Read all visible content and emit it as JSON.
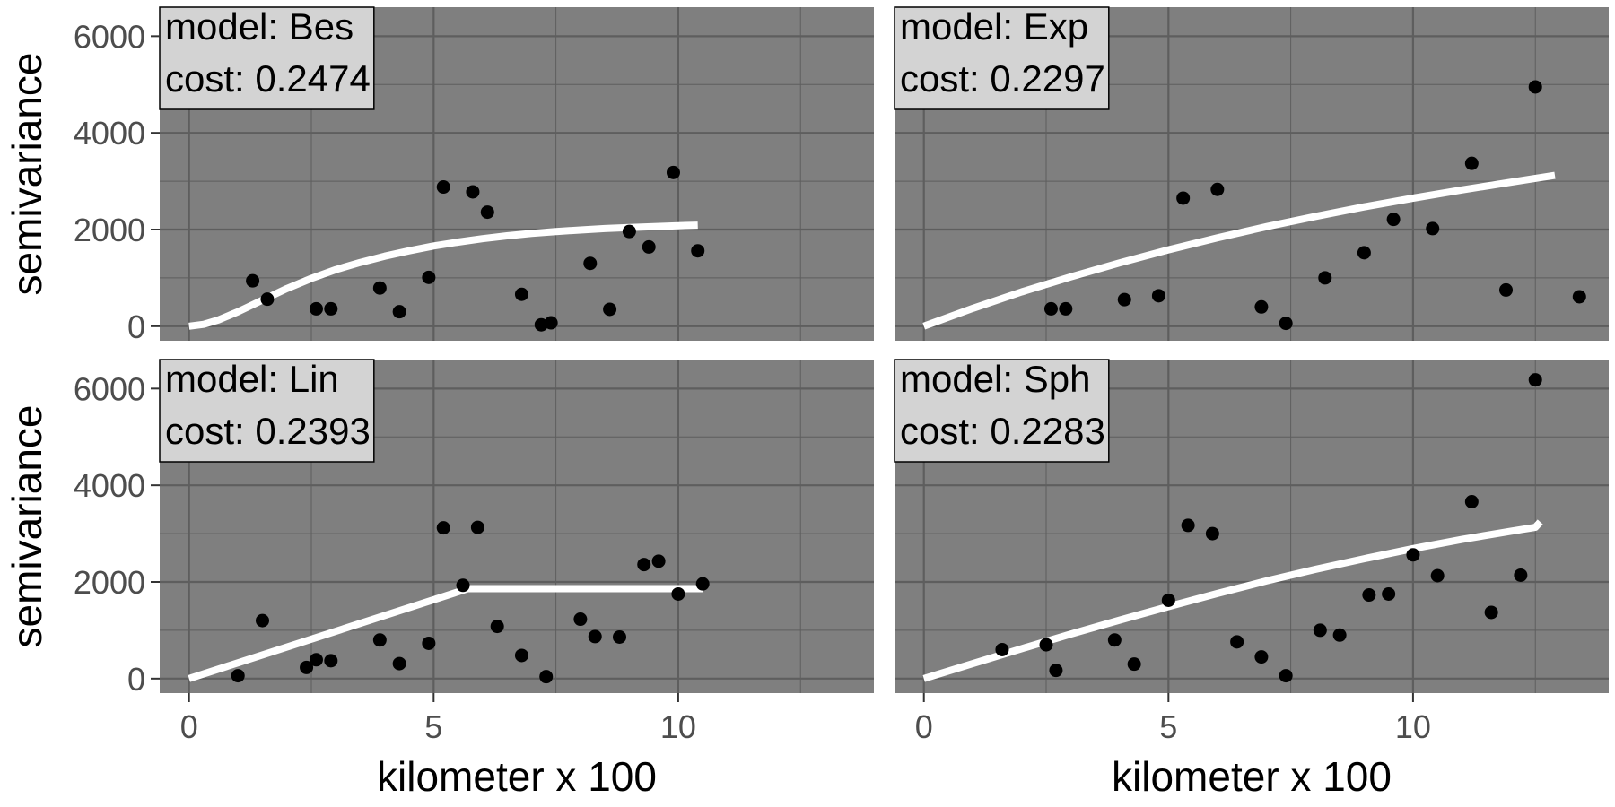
{
  "chart_data": {
    "type": "scatter",
    "layout": "2x2 facet grid",
    "xlabel": "kilometer x 100",
    "ylabel": "semivariance",
    "xlim": [
      -0.6,
      14.0
    ],
    "ylim": [
      -300,
      6600
    ],
    "x_ticks": [
      0,
      5,
      10
    ],
    "y_ticks": [
      0,
      2000,
      4000,
      6000
    ],
    "grid": true,
    "panel_background": "#7f7f7f",
    "grid_color": "#5e5e5e",
    "point_color": "#000000",
    "line_color": "#ffffff",
    "label_box_color": "#d3d3d3",
    "panels": [
      {
        "model_label": "model: Bes",
        "cost_label": "cost: 0.2474",
        "points": [
          [
            1.3,
            940
          ],
          [
            1.6,
            560
          ],
          [
            2.6,
            360
          ],
          [
            2.9,
            360
          ],
          [
            3.9,
            790
          ],
          [
            4.3,
            300
          ],
          [
            4.9,
            1010
          ],
          [
            5.2,
            2880
          ],
          [
            5.8,
            2780
          ],
          [
            6.1,
            2360
          ],
          [
            6.8,
            660
          ],
          [
            7.2,
            30
          ],
          [
            7.4,
            70
          ],
          [
            8.2,
            1300
          ],
          [
            8.6,
            350
          ],
          [
            9.0,
            1960
          ],
          [
            9.4,
            1640
          ],
          [
            9.9,
            3180
          ],
          [
            10.4,
            1560
          ]
        ],
        "fit_line": [
          [
            0,
            0
          ],
          [
            0.3,
            40
          ],
          [
            0.6,
            130
          ],
          [
            1.0,
            300
          ],
          [
            1.5,
            540
          ],
          [
            2.0,
            780
          ],
          [
            2.5,
            990
          ],
          [
            3.0,
            1170
          ],
          [
            3.5,
            1320
          ],
          [
            4.0,
            1450
          ],
          [
            4.5,
            1560
          ],
          [
            5.0,
            1660
          ],
          [
            5.5,
            1740
          ],
          [
            6.0,
            1810
          ],
          [
            6.5,
            1870
          ],
          [
            7.0,
            1920
          ],
          [
            7.5,
            1960
          ],
          [
            8.0,
            1990
          ],
          [
            8.5,
            2020
          ],
          [
            9.0,
            2040
          ],
          [
            9.5,
            2060
          ],
          [
            10.0,
            2080
          ],
          [
            10.4,
            2090
          ]
        ]
      },
      {
        "model_label": "model: Exp",
        "cost_label": "cost: 0.2297",
        "points": [
          [
            2.6,
            360
          ],
          [
            2.9,
            360
          ],
          [
            4.1,
            550
          ],
          [
            4.8,
            630
          ],
          [
            5.3,
            2650
          ],
          [
            6.0,
            2830
          ],
          [
            6.9,
            400
          ],
          [
            7.4,
            60
          ],
          [
            8.2,
            1000
          ],
          [
            9.0,
            1520
          ],
          [
            9.6,
            2210
          ],
          [
            10.4,
            2020
          ],
          [
            11.2,
            3370
          ],
          [
            11.9,
            750
          ],
          [
            12.5,
            4950
          ],
          [
            13.4,
            610
          ]
        ],
        "fit_line": [
          [
            0,
            0
          ],
          [
            1,
            370
          ],
          [
            2,
            710
          ],
          [
            3,
            1020
          ],
          [
            4,
            1310
          ],
          [
            5,
            1580
          ],
          [
            6,
            1830
          ],
          [
            7,
            2060
          ],
          [
            8,
            2270
          ],
          [
            9,
            2470
          ],
          [
            10,
            2650
          ],
          [
            11,
            2820
          ],
          [
            12,
            2980
          ],
          [
            12.9,
            3120
          ]
        ]
      },
      {
        "model_label": "model: Lin",
        "cost_label": "cost: 0.2393",
        "points": [
          [
            1.0,
            60
          ],
          [
            1.5,
            1200
          ],
          [
            2.4,
            230
          ],
          [
            2.6,
            390
          ],
          [
            2.9,
            370
          ],
          [
            3.9,
            800
          ],
          [
            4.3,
            310
          ],
          [
            4.9,
            730
          ],
          [
            5.2,
            3120
          ],
          [
            5.6,
            1930
          ],
          [
            5.9,
            3130
          ],
          [
            6.3,
            1080
          ],
          [
            6.8,
            480
          ],
          [
            7.3,
            40
          ],
          [
            8.0,
            1230
          ],
          [
            8.3,
            870
          ],
          [
            8.8,
            860
          ],
          [
            9.3,
            2360
          ],
          [
            9.6,
            2430
          ],
          [
            10.0,
            1750
          ],
          [
            10.5,
            1960
          ]
        ],
        "fit_line": [
          [
            0,
            0
          ],
          [
            5.7,
            1860
          ],
          [
            10.5,
            1860
          ]
        ]
      },
      {
        "model_label": "model: Sph",
        "cost_label": "cost: 0.2283",
        "points": [
          [
            1.6,
            600
          ],
          [
            2.5,
            700
          ],
          [
            2.7,
            170
          ],
          [
            3.9,
            800
          ],
          [
            4.3,
            300
          ],
          [
            5.0,
            1620
          ],
          [
            5.4,
            3170
          ],
          [
            5.9,
            3000
          ],
          [
            6.4,
            760
          ],
          [
            6.9,
            450
          ],
          [
            7.4,
            60
          ],
          [
            8.1,
            1000
          ],
          [
            8.5,
            900
          ],
          [
            9.1,
            1730
          ],
          [
            9.5,
            1750
          ],
          [
            10.0,
            2560
          ],
          [
            10.5,
            2130
          ],
          [
            11.2,
            3660
          ],
          [
            11.6,
            1370
          ],
          [
            12.2,
            2140
          ],
          [
            12.5,
            6180
          ]
        ],
        "fit_line": [
          [
            0,
            0
          ],
          [
            1,
            310
          ],
          [
            2,
            620
          ],
          [
            3,
            920
          ],
          [
            4,
            1210
          ],
          [
            5,
            1490
          ],
          [
            6,
            1760
          ],
          [
            7,
            2020
          ],
          [
            8,
            2260
          ],
          [
            9,
            2480
          ],
          [
            10,
            2690
          ],
          [
            11,
            2880
          ],
          [
            12,
            3050
          ],
          [
            12.5,
            3130
          ],
          [
            12.6,
            3240
          ]
        ]
      }
    ]
  }
}
